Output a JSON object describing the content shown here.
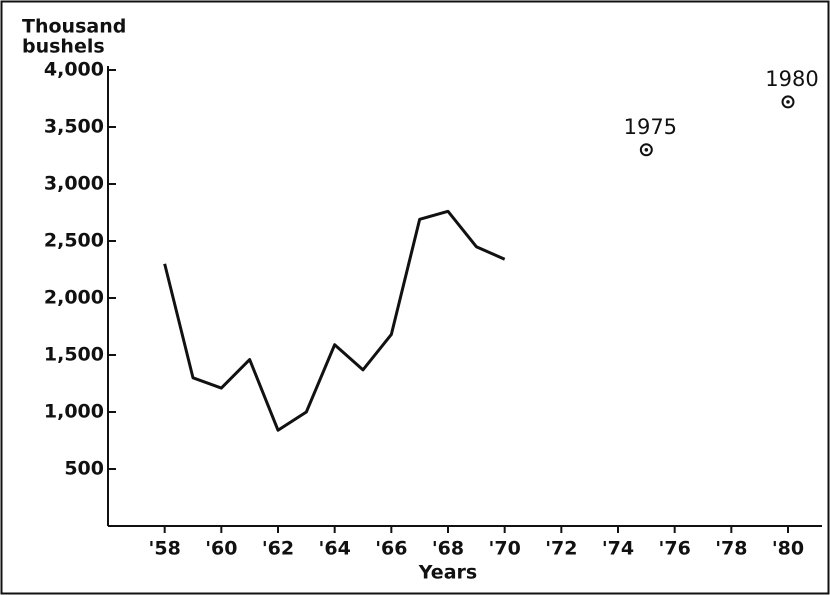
{
  "chart_data": {
    "type": "line",
    "ylabel": [
      "Thousand",
      "bushels"
    ],
    "xlabel": "Years",
    "color": "#111111",
    "xlim": [
      1956,
      1981.2
    ],
    "ylim": [
      0,
      4000
    ],
    "xticks": [
      {
        "value": 1958,
        "label": "'58"
      },
      {
        "value": 1960,
        "label": "'60"
      },
      {
        "value": 1962,
        "label": "'62"
      },
      {
        "value": 1964,
        "label": "'64"
      },
      {
        "value": 1966,
        "label": "'66"
      },
      {
        "value": 1968,
        "label": "'68"
      },
      {
        "value": 1970,
        "label": "'70"
      },
      {
        "value": 1972,
        "label": "'72"
      },
      {
        "value": 1974,
        "label": "'74"
      },
      {
        "value": 1976,
        "label": "'76"
      },
      {
        "value": 1978,
        "label": "'78"
      },
      {
        "value": 1980,
        "label": "'80"
      }
    ],
    "yticks": [
      500,
      {
        "value": 1000,
        "label": "1,000"
      },
      {
        "value": 1500,
        "label": "1,500"
      },
      {
        "value": 2000,
        "label": "2,000"
      },
      {
        "value": 2500,
        "label": "2,500"
      },
      {
        "value": 3000,
        "label": "3,000"
      },
      {
        "value": 3500,
        "label": "3,500"
      },
      {
        "value": 4000,
        "label": "4,000"
      }
    ],
    "line": {
      "x": [
        1958,
        1959,
        1960,
        1961,
        1962,
        1963,
        1964,
        1965,
        1966,
        1967,
        1968,
        1969,
        1970
      ],
      "values": [
        2300,
        1300,
        1210,
        1460,
        840,
        1000,
        1590,
        1370,
        1680,
        2690,
        2760,
        2450,
        2340
      ]
    },
    "points": {
      "x": [
        1975,
        1980
      ],
      "values": [
        3300,
        3720
      ],
      "labels": [
        "1975",
        "1980"
      ]
    }
  }
}
